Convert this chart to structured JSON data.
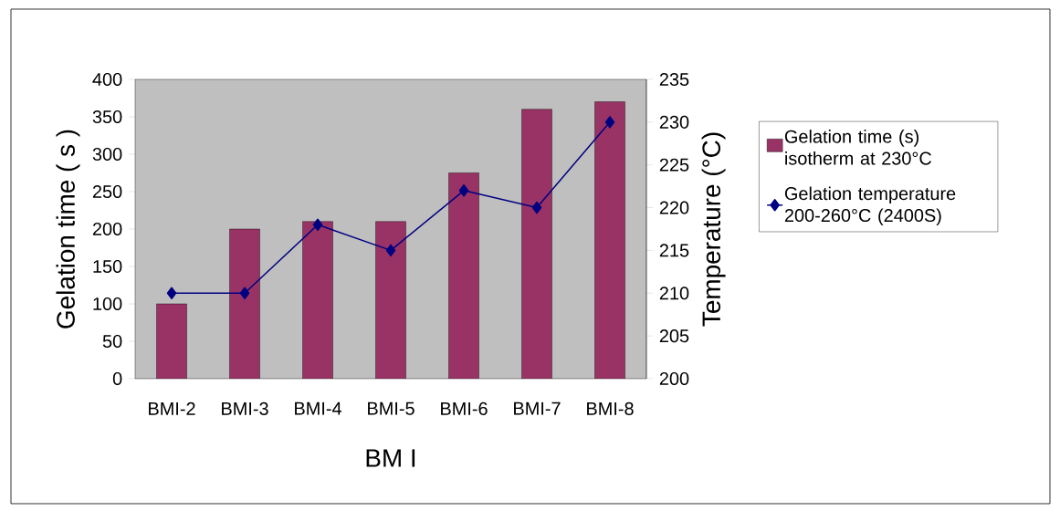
{
  "chart_data": {
    "type": "bar",
    "xlabel": "BM I",
    "ylabel": "Gelation time ( s )",
    "y2label": "Temperature (°C)",
    "categories": [
      "BMI-2",
      "BMI-3",
      "BMI-4",
      "BMI-5",
      "BMI-6",
      "BMI-7",
      "BMI-8"
    ],
    "series": [
      {
        "name": "Gelation time (s) isotherm at 230°C",
        "color": "#993366",
        "values": [
          100,
          200,
          210,
          210,
          275,
          360,
          370
        ]
      },
      {
        "name": "Gelation temperature 200-260°C (2400S)",
        "type": "line",
        "axis": "y2",
        "color": "#000080",
        "marker": "diamond",
        "values": [
          210,
          210,
          218,
          215,
          222,
          220,
          230
        ]
      }
    ],
    "ylim": [
      0,
      400
    ],
    "yticks": [
      0,
      50,
      100,
      150,
      200,
      250,
      300,
      350,
      400
    ],
    "y2lim": [
      200,
      235
    ],
    "y2ticks": [
      200,
      205,
      210,
      215,
      220,
      225,
      230,
      235
    ],
    "legend": "right",
    "grid": false
  }
}
